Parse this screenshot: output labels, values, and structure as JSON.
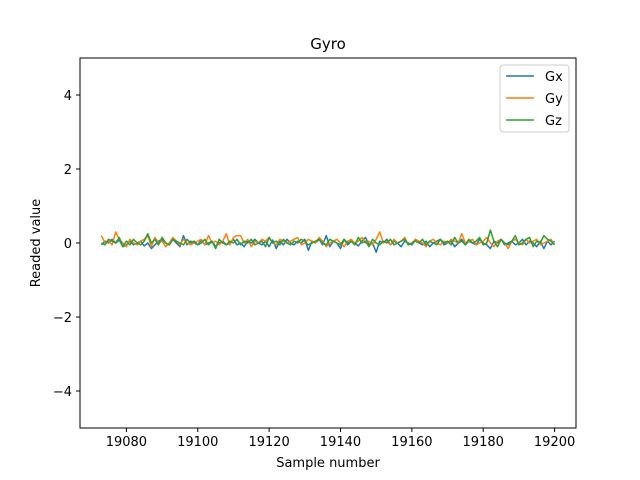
{
  "chart_data": {
    "type": "line",
    "title": "Gyro",
    "xlabel": "Sample number",
    "ylabel": "Readed value",
    "xlim": [
      19067,
      19206
    ],
    "ylim": [
      -5,
      5
    ],
    "xticks": [
      19080,
      19100,
      19120,
      19140,
      19160,
      19180,
      19200
    ],
    "yticks": [
      -4,
      -2,
      0,
      2,
      4
    ],
    "grid": false,
    "legend": "top-right",
    "x_start": 19073,
    "x_end": 19200,
    "series": [
      {
        "name": "Gx",
        "color": "#1f77b4",
        "values": [
          -0.05,
          0.05,
          0.0,
          0.1,
          0.0,
          0.08,
          -0.1,
          -0.05,
          0.05,
          -0.05,
          0.0,
          0.05,
          -0.08,
          0.0,
          -0.15,
          -0.05,
          0.05,
          0.1,
          0.0,
          -0.05,
          0.1,
          0.0,
          -0.1,
          0.2,
          -0.05,
          0.05,
          0.0,
          -0.05,
          0.08,
          -0.05,
          0.0,
          0.05,
          -0.1,
          0.0,
          0.05,
          -0.05,
          0.0,
          0.1,
          -0.05,
          0.0,
          -0.1,
          0.05,
          0.0,
          0.1,
          0.0,
          -0.05,
          0.05,
          -0.1,
          0.08,
          -0.15,
          0.05,
          -0.05,
          0.1,
          0.0,
          -0.05,
          0.05,
          0.0,
          0.1,
          -0.2,
          0.05,
          0.0,
          0.1,
          -0.05,
          0.2,
          -0.1,
          0.05,
          0.0,
          -0.15,
          0.1,
          -0.05,
          0.05,
          0.0,
          -0.08,
          0.05,
          0.15,
          -0.05,
          0.0,
          -0.25,
          0.05,
          0.0,
          0.1,
          -0.05,
          0.05,
          0.0,
          -0.1,
          0.05,
          0.0,
          -0.05,
          0.1,
          0.0,
          -0.05,
          0.05,
          -0.1,
          0.0,
          0.05,
          0.1,
          -0.05,
          0.0,
          0.05,
          -0.1,
          0.0,
          0.1,
          -0.05,
          0.05,
          0.0,
          -0.05,
          0.1,
          0.0,
          -0.05,
          -0.15,
          0.05,
          0.0,
          0.1,
          -0.05,
          0.0,
          0.05,
          -0.05,
          0.0,
          0.1,
          -0.05,
          0.05,
          0.0,
          -0.1,
          0.05,
          -0.15,
          0.05,
          -0.05,
          0.05
        ]
      },
      {
        "name": "Gy",
        "color": "#ff7f0e",
        "values": [
          0.2,
          0.0,
          0.05,
          -0.05,
          0.3,
          0.1,
          0.0,
          -0.1,
          0.1,
          0.0,
          -0.05,
          0.05,
          0.1,
          0.2,
          -0.1,
          0.15,
          0.0,
          0.05,
          -0.1,
          0.0,
          0.15,
          0.05,
          -0.05,
          0.1,
          0.0,
          -0.05,
          0.0,
          0.05,
          0.1,
          -0.05,
          0.2,
          0.0,
          0.05,
          -0.05,
          0.05,
          0.25,
          -0.05,
          0.15,
          0.2,
          0.2,
          0.0,
          0.1,
          -0.1,
          0.05,
          0.0,
          0.1,
          0.05,
          0.15,
          0.0,
          -0.05,
          0.1,
          0.05,
          0.0,
          0.05,
          0.1,
          0.15,
          -0.05,
          0.0,
          0.1,
          0.05,
          0.0,
          0.15,
          0.05,
          -0.1,
          0.0,
          0.05,
          0.1,
          0.0,
          -0.1,
          0.05,
          0.1,
          0.0,
          0.05,
          0.15,
          0.0,
          0.05,
          -0.05,
          0.1,
          0.3,
          0.0,
          0.05,
          -0.05,
          0.1,
          0.0,
          0.05,
          0.15,
          -0.05,
          0.0,
          0.1,
          0.05,
          0.0,
          -0.1,
          0.05,
          0.1,
          0.0,
          -0.05,
          0.05,
          0.0,
          0.1,
          0.05,
          0.0,
          0.25,
          0.0,
          0.05,
          0.1,
          -0.05,
          0.0,
          0.05,
          0.15,
          0.0,
          -0.1,
          0.05,
          0.1,
          0.0,
          -0.15,
          0.05,
          0.1,
          0.0,
          -0.05,
          0.1,
          0.0,
          0.05,
          0.1,
          -0.05,
          0.0,
          0.05,
          0.1,
          -0.05
        ]
      },
      {
        "name": "Gz",
        "color": "#2ca02c",
        "values": [
          0.0,
          -0.05,
          0.1,
          0.05,
          0.0,
          0.15,
          -0.1,
          0.05,
          -0.05,
          0.1,
          0.0,
          -0.05,
          0.05,
          0.25,
          0.0,
          0.1,
          -0.05,
          0.15,
          0.0,
          -0.05,
          0.1,
          0.05,
          0.0,
          -0.05,
          0.1,
          0.0,
          0.05,
          -0.05,
          0.0,
          0.1,
          -0.05,
          0.05,
          -0.15,
          0.1,
          0.0,
          -0.05,
          0.05,
          0.0,
          0.1,
          -0.05,
          0.05,
          0.0,
          0.1,
          -0.05,
          0.0,
          0.05,
          -0.1,
          0.15,
          0.0,
          0.05,
          -0.05,
          0.1,
          0.0,
          -0.05,
          0.05,
          0.0,
          0.1,
          0.05,
          -0.05,
          0.0,
          0.05,
          0.1,
          0.0,
          -0.05,
          0.1,
          0.05,
          0.0,
          -0.05,
          0.1,
          0.0,
          0.05,
          -0.05,
          0.15,
          0.0,
          0.05,
          -0.1,
          0.1,
          0.0,
          -0.05,
          0.05,
          0.0,
          0.1,
          -0.05,
          0.0,
          0.05,
          0.1,
          -0.05,
          0.0,
          0.05,
          0.0,
          0.1,
          -0.05,
          0.05,
          0.0,
          -0.05,
          0.1,
          0.0,
          0.05,
          -0.05,
          0.15,
          0.0,
          0.05,
          -0.05,
          0.1,
          0.0,
          0.05,
          0.15,
          -0.05,
          0.0,
          0.35,
          0.05,
          -0.1,
          0.1,
          0.0,
          -0.05,
          0.05,
          0.2,
          -0.05,
          0.0,
          0.1,
          0.15,
          -0.1,
          0.05,
          0.0,
          0.2,
          0.1,
          0.05,
          -0.05
        ]
      }
    ]
  }
}
